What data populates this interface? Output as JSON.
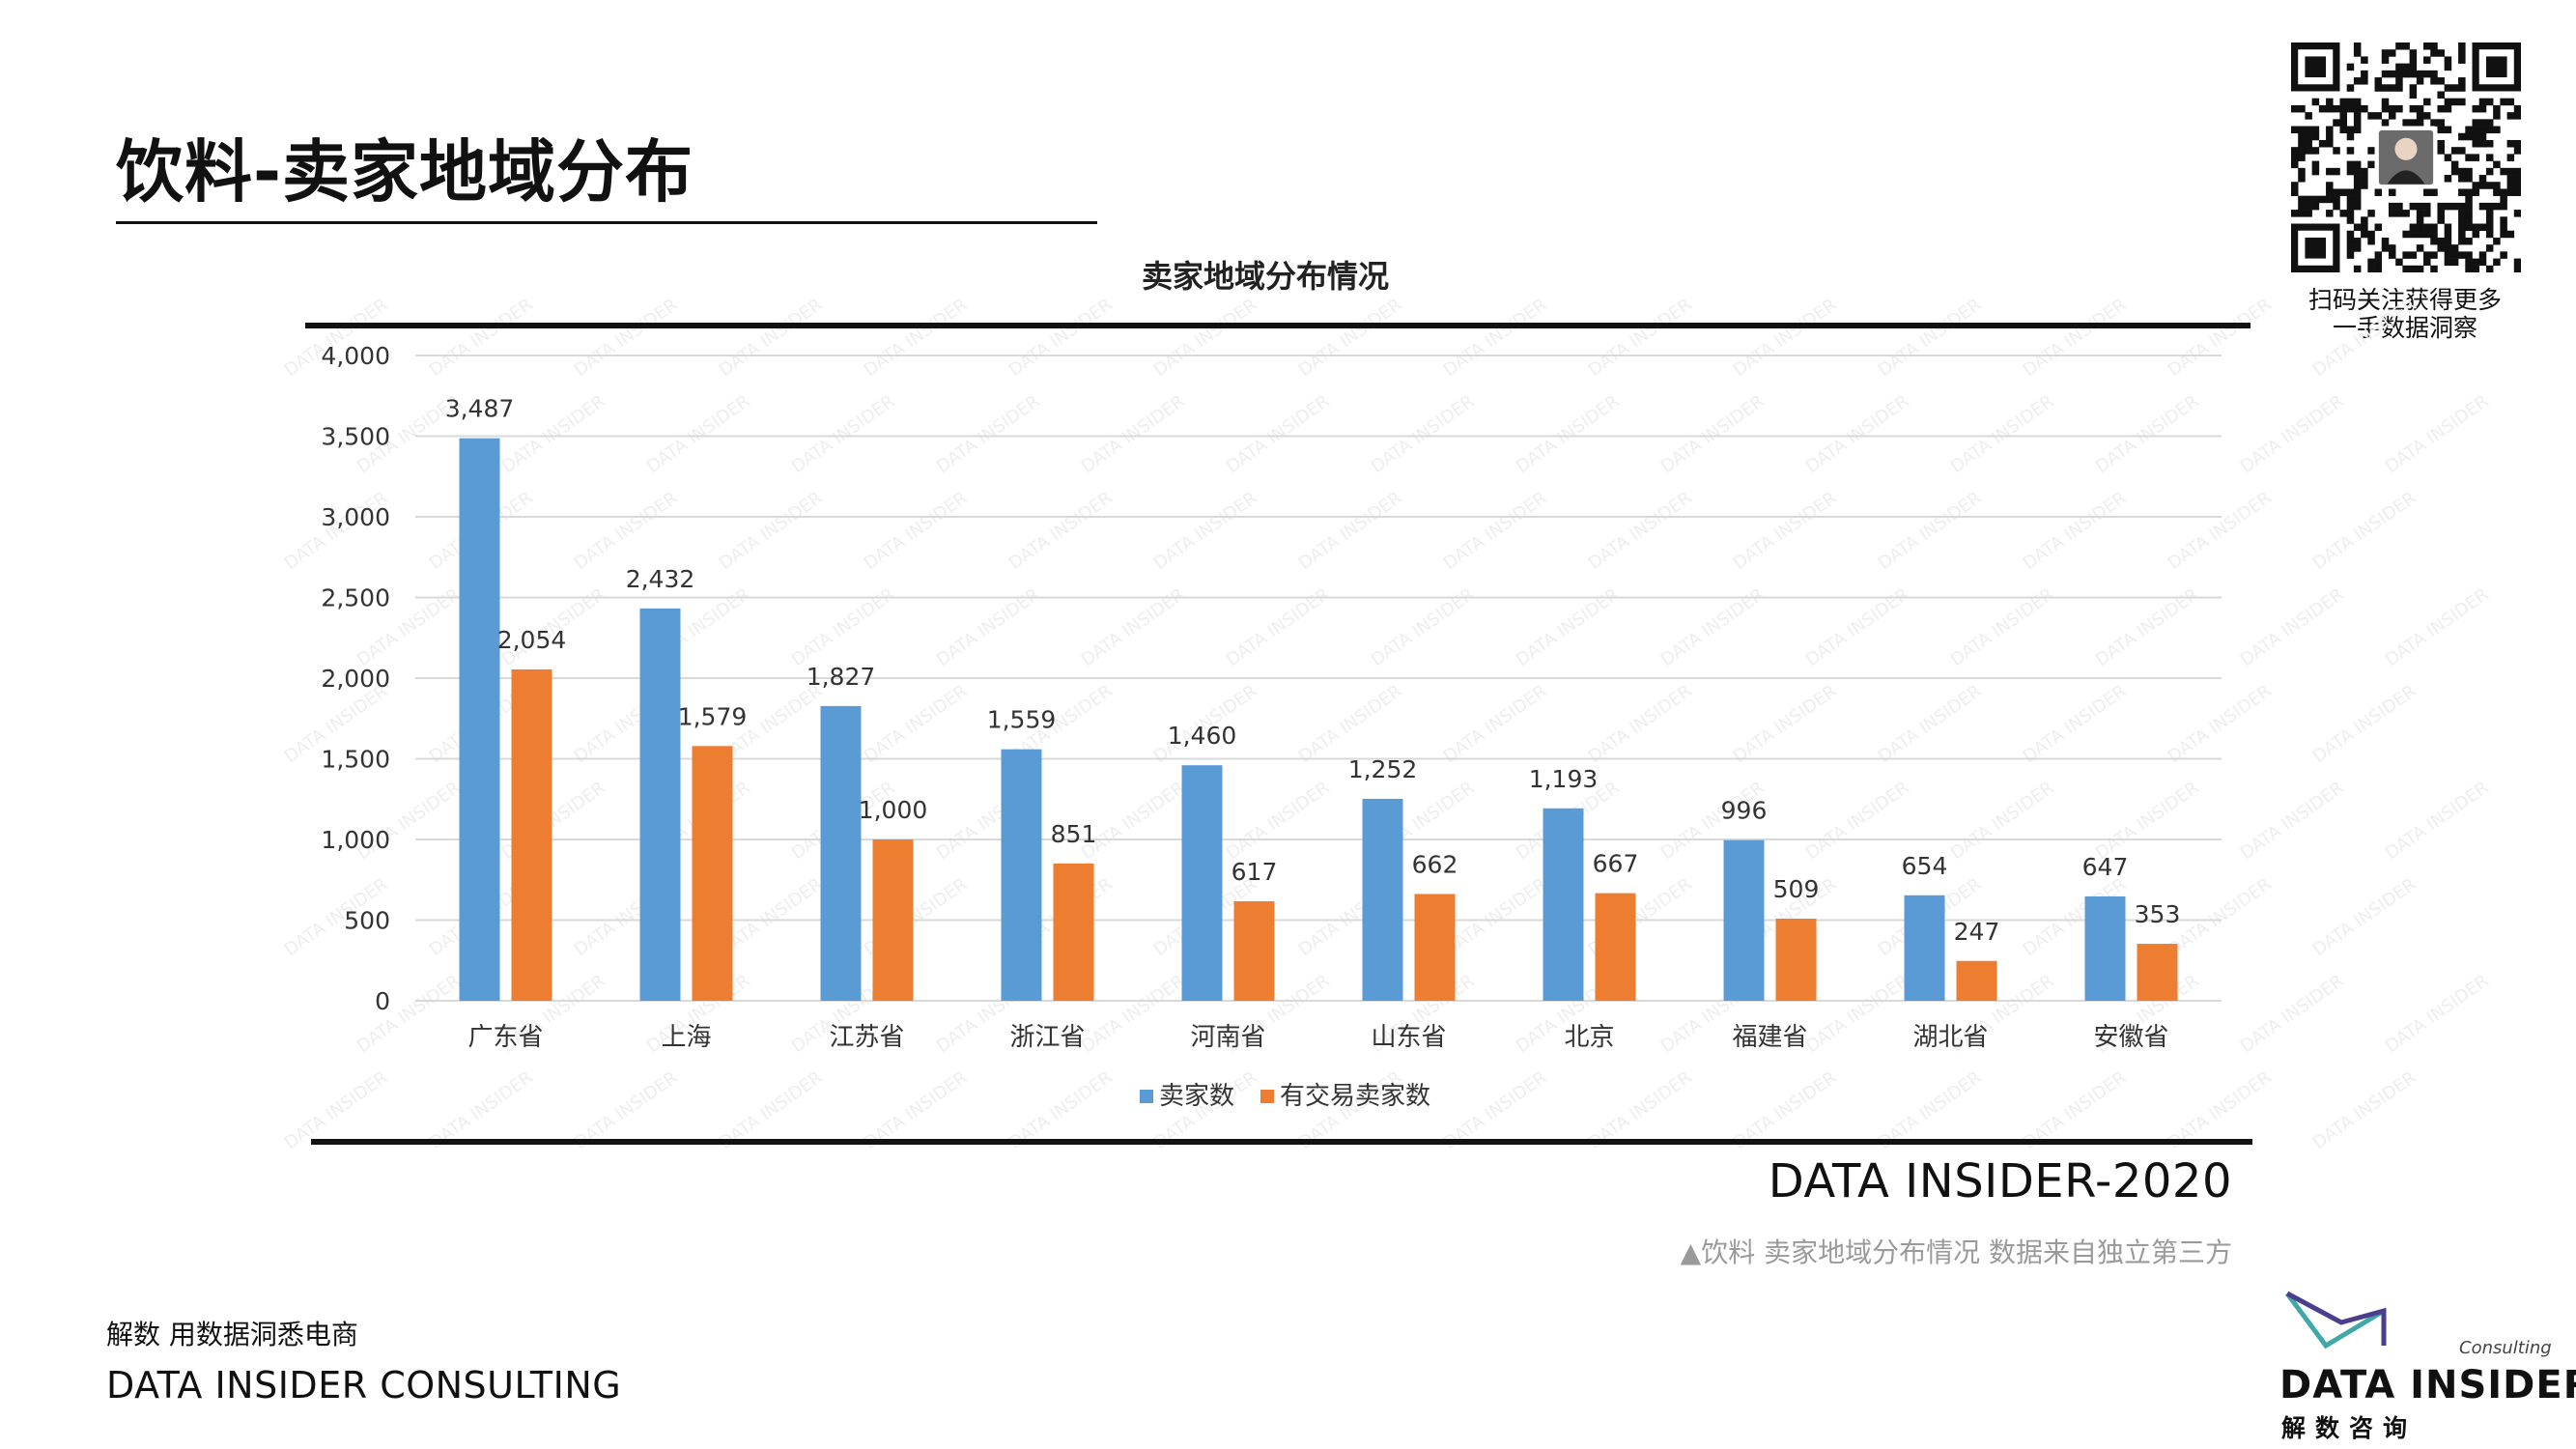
{
  "page": {
    "title": "饮料-卖家地域分布",
    "qr_caption_line1": "扫码关注获得更多",
    "qr_caption_line2": "一手数据洞察",
    "brand_year": "DATA INSIDER-2020",
    "source_note": "▲饮料 卖家地域分布情况 数据来自独立第三方",
    "footer_tagline": "解数 用数据洞悉电商",
    "footer_company": "DATA INSIDER CONSULTING",
    "logo_consulting": "Consulting",
    "logo_name": "DATA INSIDER",
    "logo_cn": "解数咨询"
  },
  "colors": {
    "series_seller": "#5b9bd5",
    "series_trading": "#ed7d31",
    "grid": "#d9d9d9",
    "watermark": "#eeeeee"
  },
  "chart_data": {
    "type": "bar",
    "title": "卖家地域分布情况",
    "xlabel": "",
    "ylabel": "",
    "ylim": [
      0,
      4000
    ],
    "yticks": [
      0,
      500,
      1000,
      1500,
      2000,
      2500,
      3000,
      3500,
      4000
    ],
    "ytick_labels": [
      "0",
      "500",
      "1,000",
      "1,500",
      "2,000",
      "2,500",
      "3,000",
      "3,500",
      "4,000"
    ],
    "grid": true,
    "legend_position": "bottom",
    "categories": [
      "广东省",
      "上海",
      "江苏省",
      "浙江省",
      "河南省",
      "山东省",
      "北京",
      "福建省",
      "湖北省",
      "安徽省"
    ],
    "series": [
      {
        "name": "卖家数",
        "values": [
          3487,
          2432,
          1827,
          1559,
          1460,
          1252,
          1193,
          996,
          654,
          647
        ],
        "labels": [
          "3,487",
          "2,432",
          "1,827",
          "1,559",
          "1,460",
          "1,252",
          "1,193",
          "996",
          "654",
          "647"
        ]
      },
      {
        "name": "有交易卖家数",
        "values": [
          2054,
          1579,
          1000,
          851,
          617,
          662,
          667,
          509,
          247,
          353
        ],
        "labels": [
          "2,054",
          "1,579",
          "1,000",
          "851",
          "617",
          "662",
          "667",
          "509",
          "247",
          "353"
        ]
      }
    ],
    "watermark_text": "DATA INSIDER"
  }
}
